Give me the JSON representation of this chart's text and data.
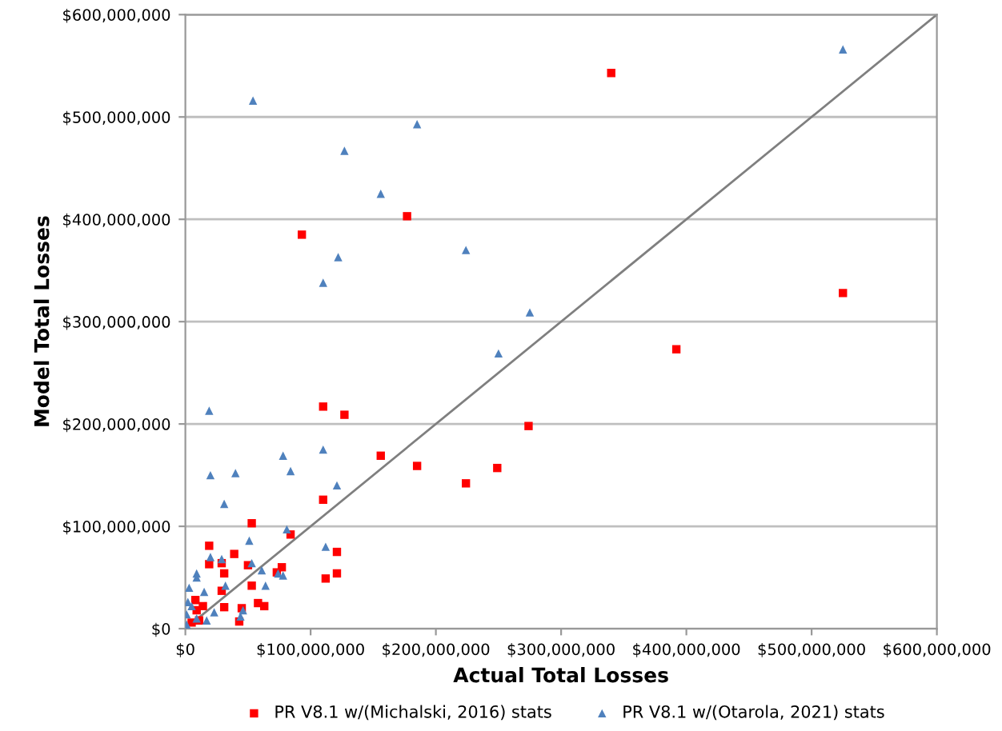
{
  "chart_data": {
    "type": "scatter",
    "xlabel": "Actual Total Losses",
    "ylabel": "Model Total Losses",
    "xlim": [
      0,
      600000000
    ],
    "ylim": [
      0,
      600000000
    ],
    "xticks": [
      {
        "value": 0,
        "label": "$0"
      },
      {
        "value": 100000000,
        "label": "$100,000,000"
      },
      {
        "value": 200000000,
        "label": "$200,000,000"
      },
      {
        "value": 300000000,
        "label": "$300,000,000"
      },
      {
        "value": 400000000,
        "label": "$400,000,000"
      },
      {
        "value": 500000000,
        "label": "$500,000,000"
      },
      {
        "value": 600000000,
        "label": "$600,000,000"
      }
    ],
    "yticks": [
      {
        "value": 0,
        "label": "$0"
      },
      {
        "value": 100000000,
        "label": "$100,000,000"
      },
      {
        "value": 200000000,
        "label": "$200,000,000"
      },
      {
        "value": 300000000,
        "label": "$300,000,000"
      },
      {
        "value": 400000000,
        "label": "$400,000,000"
      },
      {
        "value": 500000000,
        "label": "$500,000,000"
      },
      {
        "value": 600000000,
        "label": "$600,000,000"
      }
    ],
    "grid": "y",
    "legend": "bottom",
    "series": [
      {
        "type": "line",
        "color": "#7f7f7f",
        "marker": "none",
        "x": [
          0,
          600000000
        ],
        "values": [
          0,
          600000000
        ]
      },
      {
        "name": "PR V8.1 w/(Michalski, 2016) stats",
        "color": "#ff0000",
        "marker": "square",
        "x": [
          340000000,
          177000000,
          93000000,
          110000000,
          127000000,
          274000000,
          156000000,
          185000000,
          224000000,
          249000000,
          392000000,
          525000000,
          110000000,
          53000000,
          84000000,
          121000000,
          19000000,
          39000000,
          19000000,
          29000000,
          50000000,
          77000000,
          73000000,
          31000000,
          112000000,
          121000000,
          53000000,
          29000000,
          8000000,
          14000000,
          58000000,
          63000000,
          31000000,
          45000000,
          9000000,
          43000000,
          11000000,
          5000000
        ],
        "values": [
          543000000,
          403000000,
          385000000,
          217000000,
          209000000,
          198000000,
          169000000,
          159000000,
          142000000,
          157000000,
          273000000,
          328000000,
          126000000,
          103000000,
          92000000,
          75000000,
          81000000,
          73000000,
          63000000,
          64000000,
          62000000,
          60000000,
          55000000,
          54000000,
          49000000,
          54000000,
          42000000,
          37000000,
          28000000,
          22000000,
          25000000,
          22000000,
          21000000,
          20000000,
          18000000,
          7000000,
          8000000,
          6000000
        ]
      },
      {
        "name": "PR V8.1 w/(Otarola, 2021) stats",
        "color": "#4f81bd",
        "marker": "triangle",
        "x": [
          54000000,
          185000000,
          127000000,
          156000000,
          525000000,
          122000000,
          110000000,
          224000000,
          275000000,
          250000000,
          19000000,
          78000000,
          110000000,
          20000000,
          40000000,
          84000000,
          31000000,
          121000000,
          81000000,
          51000000,
          112000000,
          20000000,
          29000000,
          53000000,
          61000000,
          78000000,
          74000000,
          9000000,
          9000000,
          32000000,
          64000000,
          15000000,
          3000000,
          2000000,
          5000000,
          46000000,
          23000000,
          17000000,
          44000000,
          1000000,
          1000000,
          9000000
        ],
        "values": [
          516000000,
          493000000,
          467000000,
          425000000,
          566000000,
          363000000,
          338000000,
          370000000,
          309000000,
          269000000,
          213000000,
          169000000,
          175000000,
          150000000,
          152000000,
          154000000,
          122000000,
          140000000,
          97000000,
          86000000,
          80000000,
          70000000,
          68000000,
          64000000,
          57000000,
          52000000,
          54000000,
          54000000,
          50000000,
          42000000,
          42000000,
          36000000,
          40000000,
          26000000,
          22000000,
          18000000,
          16000000,
          8000000,
          12000000,
          4000000,
          14000000,
          10000000
        ]
      }
    ]
  }
}
